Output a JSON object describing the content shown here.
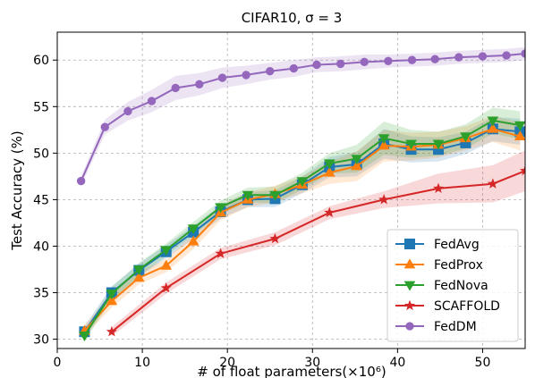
{
  "chart_data": {
    "type": "line",
    "title": "CIFAR10, σ = 3",
    "xlabel": "# of float parameters(×10⁶)",
    "ylabel": "Test Accuracy (%)",
    "xlim": [
      0,
      55
    ],
    "ylim": [
      29,
      63
    ],
    "xticks": [
      0,
      10,
      20,
      30,
      40,
      50
    ],
    "yticks": [
      30,
      35,
      40,
      45,
      50,
      55,
      60
    ],
    "grid": true,
    "legend_position": "lower-right",
    "series": [
      {
        "name": "FedAvg",
        "color": "#1f77b4",
        "marker": "square",
        "x": [
          3.2,
          6.4,
          9.6,
          12.8,
          16.0,
          19.2,
          22.4,
          25.6,
          28.8,
          32.0,
          35.2,
          38.4,
          41.6,
          44.8,
          48.0,
          51.2,
          54.4
        ],
        "values": [
          30.8,
          35.0,
          37.4,
          39.4,
          41.5,
          43.7,
          45.0,
          45.1,
          46.6,
          48.5,
          48.8,
          51.0,
          50.4,
          50.4,
          51.1,
          52.6,
          52.3
        ],
        "band": [
          0.6,
          0.7,
          0.7,
          0.7,
          0.7,
          0.7,
          0.8,
          0.9,
          0.9,
          1.1,
          1.3,
          1.6,
          1.4,
          1.3,
          1.2,
          1.3,
          1.4
        ]
      },
      {
        "name": "FedProx",
        "color": "#ff7f0e",
        "marker": "triangle-up",
        "x": [
          3.2,
          6.4,
          9.6,
          12.8,
          16.0,
          19.2,
          22.4,
          25.6,
          28.8,
          32.0,
          35.2,
          38.4,
          41.6,
          44.8,
          48.0,
          51.2,
          54.4
        ],
        "values": [
          30.9,
          34.1,
          36.6,
          37.9,
          40.5,
          43.6,
          45.0,
          45.6,
          46.6,
          47.9,
          48.6,
          50.8,
          50.7,
          50.9,
          51.6,
          52.6,
          51.8
        ],
        "band": [
          0.6,
          0.7,
          0.7,
          0.7,
          0.8,
          0.8,
          0.8,
          0.9,
          0.9,
          1.2,
          1.6,
          1.7,
          1.5,
          1.4,
          1.3,
          1.4,
          1.5
        ]
      },
      {
        "name": "FedNova",
        "color": "#2ca02c",
        "marker": "triangle-down",
        "x": [
          3.2,
          6.4,
          9.6,
          12.8,
          16.0,
          19.2,
          22.4,
          25.6,
          28.8,
          32.0,
          35.2,
          38.4,
          41.6,
          44.8,
          48.0,
          51.2,
          54.4
        ],
        "values": [
          30.4,
          34.9,
          37.5,
          39.6,
          41.9,
          44.2,
          45.5,
          45.5,
          47.0,
          48.9,
          49.4,
          51.6,
          51.0,
          51.0,
          51.8,
          53.5,
          53.0
        ],
        "band": [
          0.6,
          0.7,
          0.7,
          0.7,
          0.7,
          0.7,
          0.8,
          0.9,
          0.9,
          1.1,
          1.5,
          1.8,
          1.5,
          1.3,
          1.3,
          1.4,
          1.5
        ]
      },
      {
        "name": "SCAFFOLD",
        "color": "#d62728",
        "marker": "star",
        "x": [
          6.4,
          12.8,
          19.2,
          25.6,
          32.0,
          38.4,
          44.8,
          51.2,
          55.0
        ],
        "values": [
          30.8,
          35.5,
          39.2,
          40.8,
          43.6,
          45.0,
          46.2,
          46.7,
          48.1
        ],
        "band": [
          0.5,
          0.6,
          0.6,
          0.7,
          0.7,
          0.9,
          1.6,
          2.0,
          2.2
        ]
      },
      {
        "name": "FedDM",
        "color": "#9467bd",
        "marker": "circle",
        "x": [
          2.8,
          5.6,
          8.3,
          11.1,
          13.9,
          16.7,
          19.4,
          22.2,
          25.0,
          27.8,
          30.5,
          33.3,
          36.1,
          38.9,
          41.7,
          44.4,
          47.2,
          50.0,
          52.8,
          55.0
        ],
        "values": [
          47.0,
          52.8,
          54.5,
          55.6,
          57.0,
          57.4,
          58.1,
          58.4,
          58.8,
          59.1,
          59.5,
          59.6,
          59.8,
          59.9,
          60.0,
          60.1,
          60.3,
          60.4,
          60.5,
          60.7
        ],
        "band": [
          0.5,
          0.8,
          1.0,
          1.2,
          1.3,
          1.2,
          1.1,
          1.0,
          0.9,
          0.9,
          0.8,
          0.8,
          0.8,
          0.7,
          0.7,
          0.7,
          0.7,
          0.7,
          0.7,
          0.7
        ]
      }
    ]
  }
}
